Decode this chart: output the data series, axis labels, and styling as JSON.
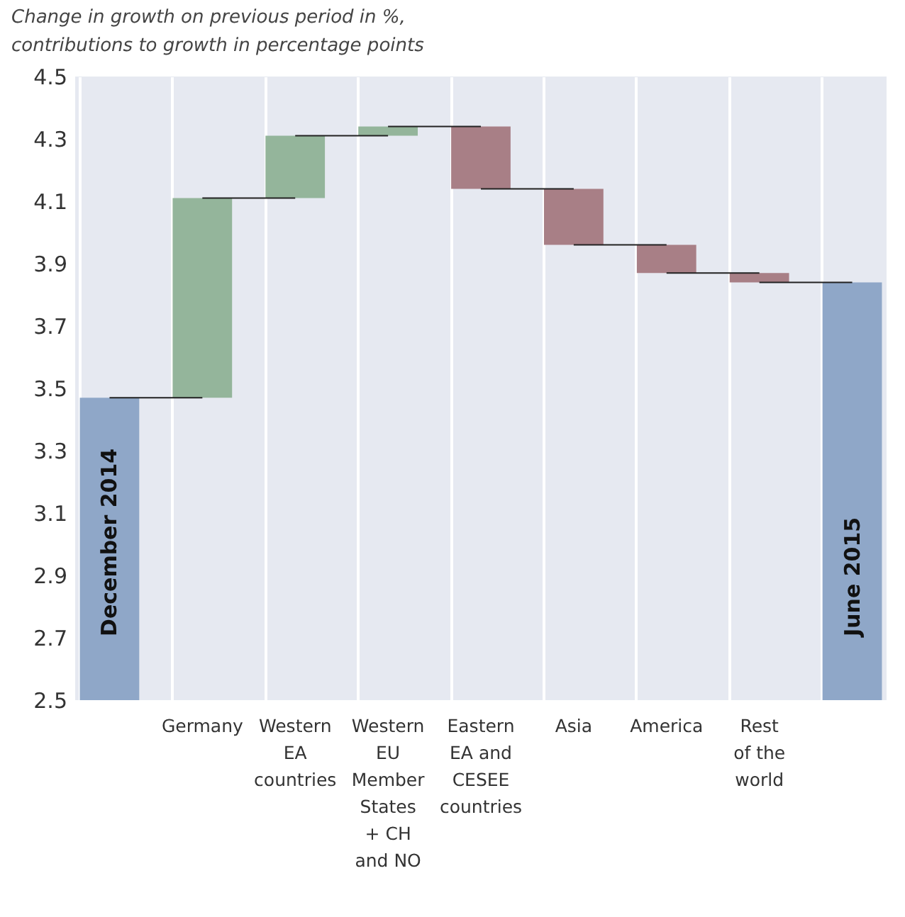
{
  "chart_data": {
    "type": "bar",
    "title": "Change in growth on previous period in %, contributions to growth in percentage points",
    "categories": [
      "December 2014",
      "Germany",
      "Western\nEA\ncountries",
      "Western\nEU\nMember\nStates\n+ CH\nand NO",
      "Eastern\nEA and\nCESEE\ncountries",
      "Asia",
      "America",
      "Rest\nof the\nworld",
      "June 2015"
    ],
    "values": [
      3.47,
      0.64,
      0.2,
      0.03,
      -0.2,
      -0.18,
      -0.09,
      -0.03,
      3.84
    ],
    "base": [
      null,
      3.47,
      4.11,
      4.31,
      4.34,
      4.14,
      3.96,
      3.87,
      null
    ],
    "colors": [
      "#8fa7c8",
      "#94b59b",
      "#94b59b",
      "#94b59b",
      "#a87f86",
      "#a87f86",
      "#a87f86",
      "#a87f86",
      "#8fa7c8"
    ],
    "ylim": [
      2.5,
      4.5
    ],
    "yticks": [
      2.5,
      2.7,
      2.9,
      3.1,
      3.3,
      3.5,
      3.7,
      3.9,
      4.1,
      4.3,
      4.5
    ],
    "grid": "x"
  }
}
